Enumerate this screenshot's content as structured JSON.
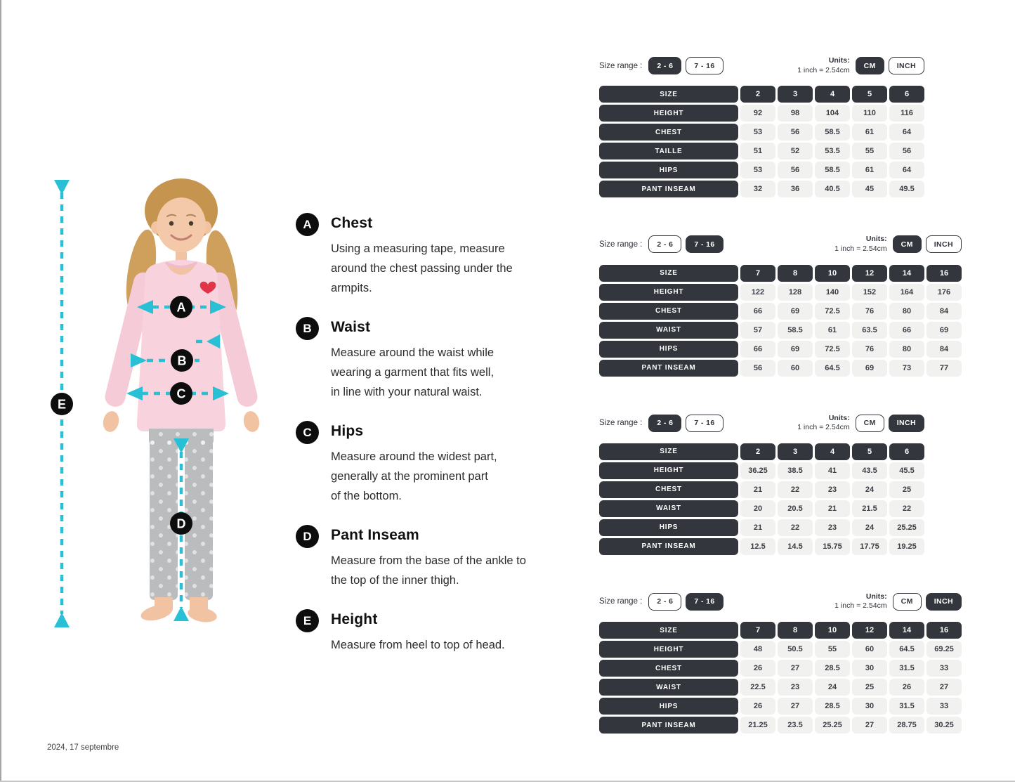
{
  "page": {
    "date_note": "2024, 17 septembre"
  },
  "colors": {
    "accent": "#29c0d6",
    "dark": "#33363c",
    "cell_bg": "#f1f1ef"
  },
  "figure": {
    "description": "girl-in-pink-sweater-and-grey-leggings"
  },
  "measurements": [
    {
      "letter": "A",
      "title": "Chest",
      "desc": "Using a measuring tape, measure\naround the chest passing under the\narmpits."
    },
    {
      "letter": "B",
      "title": "Waist",
      "desc": "Measure around the waist while\nwearing a garment that fits well,\nin line with your natural waist."
    },
    {
      "letter": "C",
      "title": "Hips",
      "desc": "Measure around the widest part,\ngenerally at the prominent part\nof the bottom."
    },
    {
      "letter": "D",
      "title": "Pant Inseam",
      "desc": "Measure from the base of the ankle to\nthe top of the inner thigh."
    },
    {
      "letter": "E",
      "title": "Height",
      "desc": "Measure from heel to top of head."
    }
  ],
  "controls": {
    "size_range_label": "Size range :",
    "size_ranges": [
      "2 - 6",
      "7 - 16"
    ],
    "units_label": "Units:",
    "units_note": "1 inch = 2.54cm",
    "units": [
      "CM",
      "INCH"
    ]
  },
  "tables": [
    {
      "selected_range": "2 - 6",
      "selected_unit": "CM",
      "rows": [
        {
          "label": "SIZE",
          "header": true,
          "values": [
            "2",
            "3",
            "4",
            "5",
            "6"
          ]
        },
        {
          "label": "HEIGHT",
          "values": [
            "92",
            "98",
            "104",
            "110",
            "116"
          ]
        },
        {
          "label": "CHEST",
          "values": [
            "53",
            "56",
            "58.5",
            "61",
            "64"
          ]
        },
        {
          "label": "TAILLE",
          "values": [
            "51",
            "52",
            "53.5",
            "55",
            "56"
          ]
        },
        {
          "label": "HIPS",
          "values": [
            "53",
            "56",
            "58.5",
            "61",
            "64"
          ]
        },
        {
          "label": "PANT INSEAM",
          "values": [
            "32",
            "36",
            "40.5",
            "45",
            "49.5"
          ]
        }
      ]
    },
    {
      "selected_range": "7 - 16",
      "selected_unit": "CM",
      "rows": [
        {
          "label": "SIZE",
          "header": true,
          "values": [
            "7",
            "8",
            "10",
            "12",
            "14",
            "16"
          ]
        },
        {
          "label": "HEIGHT",
          "values": [
            "122",
            "128",
            "140",
            "152",
            "164",
            "176"
          ]
        },
        {
          "label": "CHEST",
          "values": [
            "66",
            "69",
            "72.5",
            "76",
            "80",
            "84"
          ]
        },
        {
          "label": "WAIST",
          "values": [
            "57",
            "58.5",
            "61",
            "63.5",
            "66",
            "69"
          ]
        },
        {
          "label": "HIPS",
          "values": [
            "66",
            "69",
            "72.5",
            "76",
            "80",
            "84"
          ]
        },
        {
          "label": "PANT INSEAM",
          "values": [
            "56",
            "60",
            "64.5",
            "69",
            "73",
            "77"
          ]
        }
      ]
    },
    {
      "selected_range": "2 - 6",
      "selected_unit": "INCH",
      "rows": [
        {
          "label": "SIZE",
          "header": true,
          "values": [
            "2",
            "3",
            "4",
            "5",
            "6"
          ]
        },
        {
          "label": "HEIGHT",
          "values": [
            "36.25",
            "38.5",
            "41",
            "43.5",
            "45.5"
          ]
        },
        {
          "label": "CHEST",
          "values": [
            "21",
            "22",
            "23",
            "24",
            "25"
          ]
        },
        {
          "label": "WAIST",
          "values": [
            "20",
            "20.5",
            "21",
            "21.5",
            "22"
          ]
        },
        {
          "label": "HIPS",
          "values": [
            "21",
            "22",
            "23",
            "24",
            "25.25"
          ]
        },
        {
          "label": "PANT INSEAM",
          "values": [
            "12.5",
            "14.5",
            "15.75",
            "17.75",
            "19.25"
          ]
        }
      ]
    },
    {
      "selected_range": "7 - 16",
      "selected_unit": "INCH",
      "rows": [
        {
          "label": "SIZE",
          "header": true,
          "values": [
            "7",
            "8",
            "10",
            "12",
            "14",
            "16"
          ]
        },
        {
          "label": "HEIGHT",
          "values": [
            "48",
            "50.5",
            "55",
            "60",
            "64.5",
            "69.25"
          ]
        },
        {
          "label": "CHEST",
          "values": [
            "26",
            "27",
            "28.5",
            "30",
            "31.5",
            "33"
          ]
        },
        {
          "label": "WAIST",
          "values": [
            "22.5",
            "23",
            "24",
            "25",
            "26",
            "27"
          ]
        },
        {
          "label": "HIPS",
          "values": [
            "26",
            "27",
            "28.5",
            "30",
            "31.5",
            "33"
          ]
        },
        {
          "label": "PANT INSEAM",
          "values": [
            "21.25",
            "23.5",
            "25.25",
            "27",
            "28.75",
            "30.25"
          ]
        }
      ]
    }
  ]
}
